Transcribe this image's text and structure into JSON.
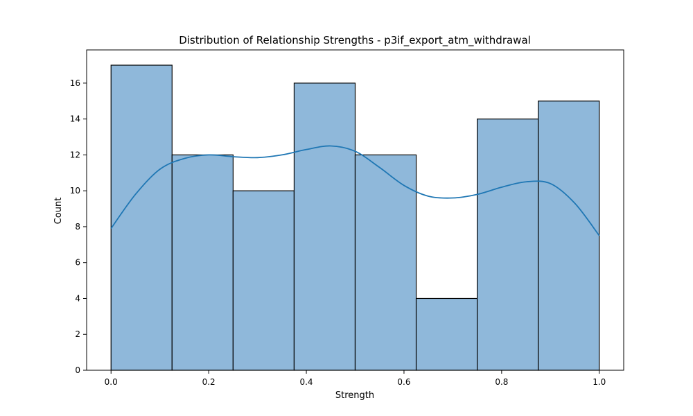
{
  "chart_data": {
    "type": "bar",
    "title": "Distribution of Relationship Strengths - p3if_export_atm_withdrawal",
    "xlabel": "Strength",
    "ylabel": "Count",
    "bins": [
      {
        "start": 0.0,
        "end": 0.125,
        "count": 17
      },
      {
        "start": 0.125,
        "end": 0.25,
        "count": 12
      },
      {
        "start": 0.25,
        "end": 0.375,
        "count": 10
      },
      {
        "start": 0.375,
        "end": 0.5,
        "count": 16
      },
      {
        "start": 0.5,
        "end": 0.625,
        "count": 12
      },
      {
        "start": 0.625,
        "end": 0.75,
        "count": 4
      },
      {
        "start": 0.75,
        "end": 0.875,
        "count": 14
      },
      {
        "start": 0.875,
        "end": 1.0,
        "count": 15
      }
    ],
    "kde": {
      "x": [
        0.0,
        0.05,
        0.1,
        0.15,
        0.2,
        0.25,
        0.3,
        0.35,
        0.4,
        0.45,
        0.5,
        0.55,
        0.6,
        0.65,
        0.7,
        0.75,
        0.8,
        0.85,
        0.9,
        0.95,
        1.0
      ],
      "y": [
        7.9,
        9.8,
        11.2,
        11.8,
        12.0,
        11.9,
        11.85,
        12.0,
        12.3,
        12.5,
        12.2,
        11.3,
        10.3,
        9.7,
        9.6,
        9.8,
        10.2,
        10.5,
        10.4,
        9.3,
        7.5
      ]
    },
    "xlim": [
      -0.05,
      1.05
    ],
    "ylim": [
      0,
      17.85
    ],
    "xticks": [
      0.0,
      0.2,
      0.4,
      0.6,
      0.8,
      1.0
    ],
    "xtick_labels": [
      "0.0",
      "0.2",
      "0.4",
      "0.6",
      "0.8",
      "1.0"
    ],
    "yticks": [
      0,
      2,
      4,
      6,
      8,
      10,
      12,
      14,
      16
    ],
    "ytick_labels": [
      "0",
      "2",
      "4",
      "6",
      "8",
      "10",
      "12",
      "14",
      "16"
    ],
    "grid": false,
    "colors": {
      "bar_fill": "#8fb8da",
      "bar_edge": "#000000",
      "kde_line": "#1f77b4",
      "axis": "#000000",
      "text": "#000000"
    }
  }
}
